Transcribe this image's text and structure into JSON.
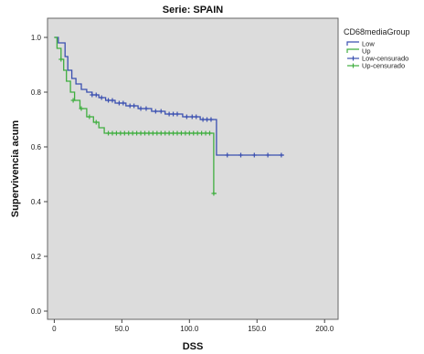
{
  "chart_data": {
    "type": "line",
    "title": "Serie: SPAIN",
    "xlabel": "DSS",
    "ylabel": "Supervivencia acum",
    "xlim": [
      -5,
      210
    ],
    "ylim": [
      -0.03,
      1.07
    ],
    "x_ticks": [
      0,
      50,
      100,
      150,
      200
    ],
    "x_tick_labels": [
      "0",
      "50.0",
      "100.0",
      "150.0",
      "200.0"
    ],
    "y_ticks": [
      0.0,
      0.2,
      0.4,
      0.6,
      0.8,
      1.0
    ],
    "y_tick_labels": [
      "0.0",
      "0.2",
      "0.4",
      "0.6",
      "0.8",
      "1.0"
    ],
    "grid": false,
    "legend": {
      "title": "CD68mediaGroup",
      "placement": "right",
      "items": [
        {
          "label": "Low",
          "color": "#3a4fb0",
          "marker": "step"
        },
        {
          "label": "Up",
          "color": "#3fae3f",
          "marker": "step"
        },
        {
          "label": "Low-censurado",
          "color": "#3a4fb0",
          "marker": "plus"
        },
        {
          "label": "Up-censurado",
          "color": "#3fae3f",
          "marker": "plus"
        }
      ]
    },
    "series": [
      {
        "name": "Low",
        "color": "#3a4fb0",
        "steps": [
          [
            0,
            1.0
          ],
          [
            3,
            0.98
          ],
          [
            8,
            0.93
          ],
          [
            10,
            0.88
          ],
          [
            13,
            0.85
          ],
          [
            16,
            0.83
          ],
          [
            20,
            0.81
          ],
          [
            24,
            0.8
          ],
          [
            28,
            0.79
          ],
          [
            33,
            0.78
          ],
          [
            38,
            0.77
          ],
          [
            45,
            0.76
          ],
          [
            53,
            0.75
          ],
          [
            62,
            0.74
          ],
          [
            72,
            0.73
          ],
          [
            82,
            0.72
          ],
          [
            95,
            0.71
          ],
          [
            108,
            0.7
          ],
          [
            120,
            0.7
          ],
          [
            120,
            0.57
          ],
          [
            170,
            0.57
          ]
        ],
        "censored": [
          [
            28,
            0.79
          ],
          [
            31,
            0.79
          ],
          [
            35,
            0.78
          ],
          [
            40,
            0.77
          ],
          [
            43,
            0.77
          ],
          [
            48,
            0.76
          ],
          [
            51,
            0.76
          ],
          [
            56,
            0.75
          ],
          [
            59,
            0.75
          ],
          [
            64,
            0.74
          ],
          [
            68,
            0.74
          ],
          [
            75,
            0.73
          ],
          [
            79,
            0.73
          ],
          [
            85,
            0.72
          ],
          [
            88,
            0.72
          ],
          [
            91,
            0.72
          ],
          [
            98,
            0.71
          ],
          [
            102,
            0.71
          ],
          [
            105,
            0.71
          ],
          [
            110,
            0.7
          ],
          [
            113,
            0.7
          ],
          [
            116,
            0.7
          ],
          [
            128,
            0.57
          ],
          [
            138,
            0.57
          ],
          [
            148,
            0.57
          ],
          [
            158,
            0.57
          ],
          [
            168,
            0.57
          ]
        ]
      },
      {
        "name": "Up",
        "color": "#3fae3f",
        "steps": [
          [
            0,
            1.0
          ],
          [
            2,
            0.96
          ],
          [
            5,
            0.92
          ],
          [
            7,
            0.88
          ],
          [
            9,
            0.84
          ],
          [
            12,
            0.8
          ],
          [
            15,
            0.77
          ],
          [
            19,
            0.74
          ],
          [
            24,
            0.71
          ],
          [
            29,
            0.69
          ],
          [
            33,
            0.67
          ],
          [
            37,
            0.65
          ],
          [
            118,
            0.65
          ],
          [
            118,
            0.43
          ],
          [
            120,
            0.43
          ]
        ],
        "censored": [
          [
            5,
            0.92
          ],
          [
            14,
            0.77
          ],
          [
            20,
            0.74
          ],
          [
            26,
            0.71
          ],
          [
            31,
            0.69
          ],
          [
            40,
            0.65
          ],
          [
            43,
            0.65
          ],
          [
            46,
            0.65
          ],
          [
            49,
            0.65
          ],
          [
            52,
            0.65
          ],
          [
            55,
            0.65
          ],
          [
            58,
            0.65
          ],
          [
            61,
            0.65
          ],
          [
            64,
            0.65
          ],
          [
            67,
            0.65
          ],
          [
            70,
            0.65
          ],
          [
            73,
            0.65
          ],
          [
            76,
            0.65
          ],
          [
            79,
            0.65
          ],
          [
            82,
            0.65
          ],
          [
            85,
            0.65
          ],
          [
            88,
            0.65
          ],
          [
            91,
            0.65
          ],
          [
            94,
            0.65
          ],
          [
            97,
            0.65
          ],
          [
            100,
            0.65
          ],
          [
            103,
            0.65
          ],
          [
            106,
            0.65
          ],
          [
            109,
            0.65
          ],
          [
            112,
            0.65
          ],
          [
            115,
            0.65
          ],
          [
            118,
            0.43
          ]
        ]
      }
    ]
  }
}
